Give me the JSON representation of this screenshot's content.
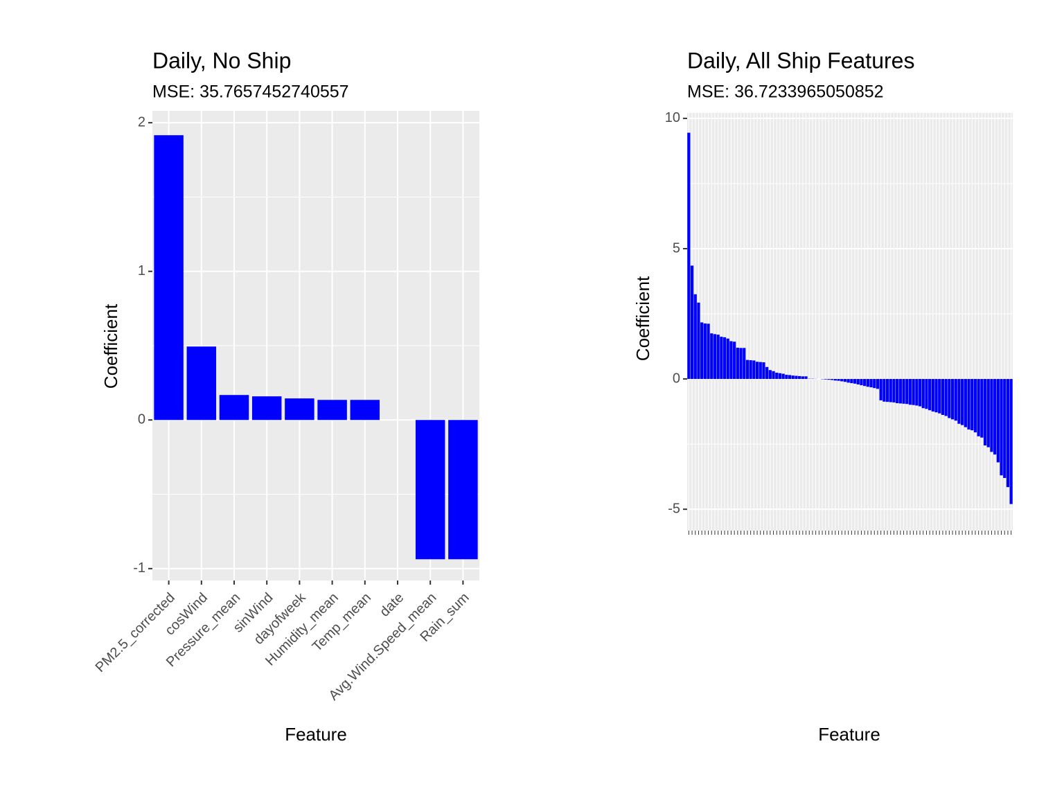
{
  "chart_data": [
    {
      "type": "bar",
      "title": "Daily, No Ship",
      "subtitle": "MSE: 35.7657452740557",
      "x_label": "Feature",
      "y_label": "Coefficient",
      "categories": [
        "PM2.5_corrected",
        "cosWind",
        "Pressure_mean",
        "sinWind",
        "dayofweek",
        "Humidity_mean",
        "Temp_mean",
        "date",
        "Avg.Wind.Speed_mean",
        "Rain_sum"
      ],
      "values": [
        1.916,
        0.494,
        0.168,
        0.159,
        0.145,
        0.135,
        0.135,
        0,
        -0.937,
        -0.937
      ],
      "color": "#0000ff",
      "ylim": [
        -1.08,
        2.08
      ],
      "yticks": [
        -1,
        0,
        1,
        2
      ],
      "minor_yticks": [
        -0.5,
        0.5,
        1.5
      ],
      "grid": true
    },
    {
      "type": "bar",
      "title": "Daily, All Ship Features",
      "subtitle": "MSE: 36.7233965050852",
      "x_label": "Feature",
      "y_label": "Coefficient",
      "categories": [
        null,
        null,
        null,
        null,
        null,
        null,
        null,
        null,
        null,
        null,
        null,
        null,
        null,
        null,
        null,
        null,
        null,
        null,
        null,
        null,
        null,
        null,
        null,
        null,
        null,
        null,
        null,
        null,
        null,
        null,
        null,
        null,
        null,
        null,
        null,
        null,
        null,
        null,
        null,
        null,
        null,
        null,
        null,
        null,
        null,
        null,
        null,
        null,
        null,
        null,
        null,
        null,
        null,
        null,
        null,
        null,
        null,
        null,
        null,
        null,
        null,
        null,
        null,
        null,
        null,
        null,
        null,
        null,
        null,
        null,
        null,
        null,
        null,
        null,
        null,
        null,
        null,
        null,
        null,
        null,
        null,
        null,
        null,
        null,
        null,
        null,
        null,
        null,
        null,
        null,
        null,
        null,
        null,
        null,
        null,
        null,
        null,
        null,
        null,
        null
      ],
      "values": [
        9.45,
        4.35,
        3.25,
        2.93,
        2.17,
        2.13,
        2.12,
        1.75,
        1.72,
        1.7,
        1.62,
        1.6,
        1.55,
        1.45,
        1.43,
        1.2,
        1.19,
        1.19,
        0.73,
        0.72,
        0.71,
        0.66,
        0.65,
        0.64,
        0.46,
        0.34,
        0.3,
        0.24,
        0.22,
        0.2,
        0.16,
        0.15,
        0.13,
        0.12,
        0.11,
        0.1,
        0.1,
        0.01,
        0.01,
        0.005,
        0,
        -0.01,
        -0.02,
        -0.03,
        -0.04,
        -0.06,
        -0.07,
        -0.09,
        -0.11,
        -0.14,
        -0.16,
        -0.18,
        -0.21,
        -0.24,
        -0.27,
        -0.3,
        -0.32,
        -0.35,
        -0.38,
        -0.82,
        -0.87,
        -0.88,
        -0.89,
        -0.9,
        -0.93,
        -0.94,
        -0.95,
        -0.96,
        -0.99,
        -1.0,
        -1.02,
        -1.05,
        -1.12,
        -1.15,
        -1.2,
        -1.25,
        -1.28,
        -1.32,
        -1.38,
        -1.42,
        -1.5,
        -1.55,
        -1.6,
        -1.72,
        -1.77,
        -1.85,
        -1.94,
        -1.97,
        -2.05,
        -2.2,
        -2.25,
        -2.55,
        -2.62,
        -2.8,
        -2.9,
        -3.2,
        -3.7,
        -3.8,
        -4.15,
        -4.8
      ],
      "color": "#0000ff",
      "ylim": [
        -5.82,
        10.21
      ],
      "yticks": [
        -5,
        0,
        5,
        10
      ],
      "minor_yticks": [
        -2.5,
        2.5,
        7.5
      ],
      "grid": true
    }
  ]
}
